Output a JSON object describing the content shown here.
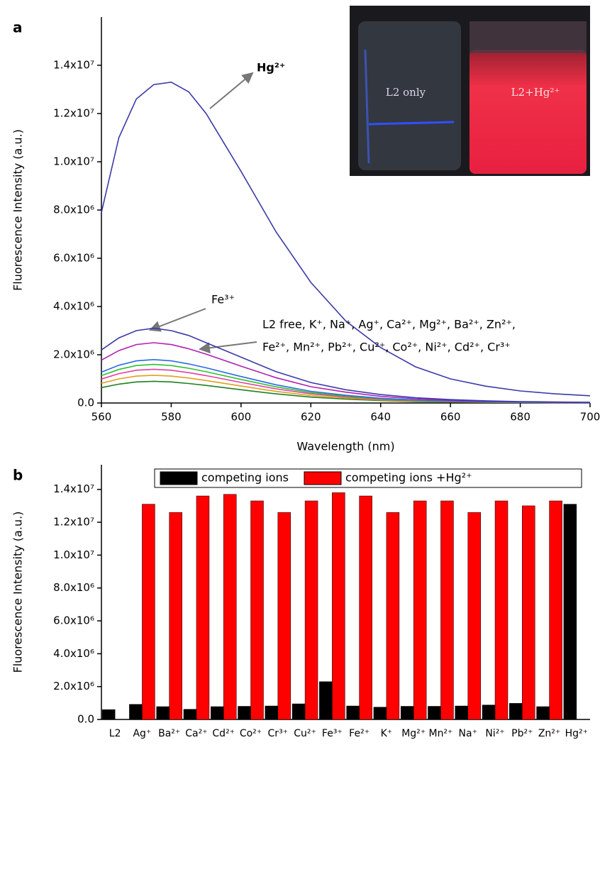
{
  "chart_data": [
    {
      "type": "line",
      "panel_label": "a",
      "x_label": "Wavelength (nm)",
      "y_label": "Fluorescence Intensity (a.u.)",
      "x": [
        560,
        565,
        570,
        575,
        580,
        585,
        590,
        600,
        610,
        620,
        630,
        640,
        650,
        660,
        670,
        680,
        690,
        700
      ],
      "xlim": [
        560,
        700
      ],
      "xticks": [
        560,
        580,
        600,
        620,
        640,
        660,
        680,
        700
      ],
      "ylim": [
        0,
        16000000
      ],
      "yticks": [
        {
          "value": 0,
          "label": "0.0"
        },
        {
          "value": 2000000,
          "label": "2.0x10⁶"
        },
        {
          "value": 4000000,
          "label": "4.0x10⁶"
        },
        {
          "value": 6000000,
          "label": "6.0x10⁶"
        },
        {
          "value": 8000000,
          "label": "8.0x10⁶"
        },
        {
          "value": 10000000,
          "label": "1.0x10⁷"
        },
        {
          "value": 12000000,
          "label": "1.2x10⁷"
        },
        {
          "value": 14000000,
          "label": "1.4x10⁷"
        }
      ],
      "series": [
        {
          "color": "#3a3aa8",
          "values": [
            7900000,
            11000000,
            12600000,
            13200000,
            13300000,
            12900000,
            12000000,
            9600000,
            7100000,
            5000000,
            3400000,
            2300000,
            1500000,
            1000000,
            700000,
            500000,
            380000,
            300000
          ]
        },
        {
          "color": "#3a3aa8",
          "values": [
            2200000,
            2700000,
            3000000,
            3100000,
            3000000,
            2800000,
            2500000,
            1900000,
            1300000,
            850000,
            550000,
            350000,
            220000,
            140000,
            90000,
            60000,
            40000,
            30000
          ]
        },
        {
          "color": "#b020b0",
          "values": [
            1775000,
            2175000,
            2425000,
            2500000,
            2425000,
            2250000,
            2025000,
            1525000,
            1050000,
            675000,
            450000,
            275000,
            175000,
            112500,
            75000,
            50000,
            32500,
            25000
          ]
        },
        {
          "color": "#2a6ae0",
          "values": [
            1278000,
            1566000,
            1746000,
            1800000,
            1746000,
            1620000,
            1458000,
            1098000,
            756000,
            486000,
            324000,
            198000,
            126000,
            81000,
            54000,
            36000,
            23400,
            18000
          ]
        },
        {
          "color": "#30c030",
          "values": [
            1136000,
            1392000,
            1552000,
            1600000,
            1552000,
            1440000,
            1296000,
            976000,
            672000,
            432000,
            288000,
            176000,
            112000,
            72000,
            48000,
            32000,
            20800,
            16000
          ]
        },
        {
          "color": "#e040a0",
          "values": [
            994000,
            1218000,
            1358000,
            1400000,
            1358000,
            1260000,
            1134000,
            854000,
            588000,
            378000,
            252000,
            154000,
            98000,
            63000,
            42000,
            28000,
            18200,
            14000
          ]
        },
        {
          "color": "#e0a020",
          "values": [
            816500,
            1000500,
            1115500,
            1150000,
            1115500,
            1035000,
            931500,
            701500,
            483000,
            310500,
            207000,
            126500,
            80500,
            51750,
            34500,
            23000,
            14950,
            11500
          ]
        },
        {
          "color": "#208020",
          "values": [
            639000,
            783000,
            873000,
            900000,
            873000,
            810000,
            729000,
            549000,
            378000,
            243000,
            162000,
            99000,
            63000,
            40500,
            27000,
            18000,
            11700,
            9000
          ]
        }
      ],
      "annotations": [
        "Hg²⁺",
        "Fe³⁺",
        "L2 free, K⁺, Na⁺, Ag⁺, Ca²⁺, Mg²⁺, Ba²⁺, Zn²⁺,",
        "Fe²⁺, Mn²⁺, Pb²⁺, Cu²⁺, Co²⁺, Ni²⁺, Cd²⁺, Cr³⁺"
      ],
      "inset_labels": [
        "L2 only",
        "L2+Hg²⁺"
      ]
    },
    {
      "type": "bar",
      "panel_label": "b",
      "y_label": "Fluorescence Intensity (a.u.)",
      "categories": [
        "L2",
        "Ag⁺",
        "Ba²⁺",
        "Ca²⁺",
        "Cd²⁺",
        "Co²⁺",
        "Cr³⁺",
        "Cu²⁺",
        "Fe³⁺",
        "Fe²⁺",
        "K⁺",
        "Mg²⁺",
        "Mn²⁺",
        "Na⁺",
        "Ni²⁺",
        "Pb²⁺",
        "Zn²⁺",
        "Hg²⁺"
      ],
      "ylim": [
        0,
        15500000
      ],
      "yticks": [
        {
          "value": 0,
          "label": "0.0"
        },
        {
          "value": 2000000,
          "label": "2.0x10⁶"
        },
        {
          "value": 4000000,
          "label": "4.0x10⁶"
        },
        {
          "value": 6000000,
          "label": "6.0x10⁶"
        },
        {
          "value": 8000000,
          "label": "8.0x10⁶"
        },
        {
          "value": 10000000,
          "label": "1.0x10⁷"
        },
        {
          "value": 12000000,
          "label": "1.2x10⁷"
        },
        {
          "value": 14000000,
          "label": "1.4x10⁷"
        }
      ],
      "legend": "top",
      "series": [
        {
          "name": "competing ions",
          "color": "#000000",
          "values": [
            600000,
            920000,
            780000,
            620000,
            780000,
            800000,
            820000,
            950000,
            2300000,
            820000,
            750000,
            800000,
            800000,
            820000,
            880000,
            980000,
            780000,
            13100000
          ]
        },
        {
          "name": "competing ions +Hg²⁺",
          "color": "#ff0000",
          "values": [
            null,
            13100000,
            12600000,
            13600000,
            13700000,
            13300000,
            12600000,
            13300000,
            13800000,
            13600000,
            12600000,
            13300000,
            13300000,
            12600000,
            13300000,
            13000000,
            13300000,
            null
          ]
        }
      ]
    }
  ]
}
